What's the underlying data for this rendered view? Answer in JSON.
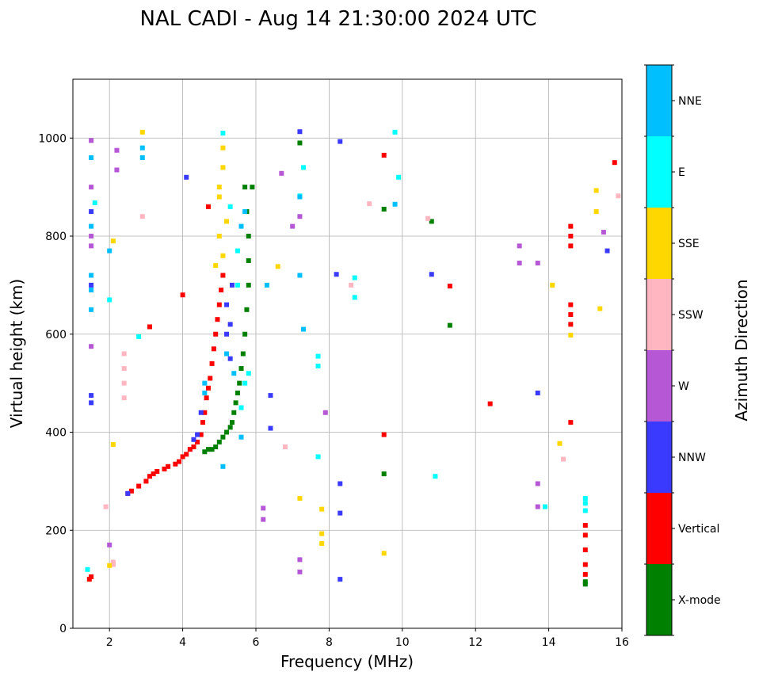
{
  "chart_data": {
    "type": "scatter",
    "title": "NAL CADI - Aug 14 21:30:00 2024 UTC",
    "xlabel": "Frequency (MHz)",
    "ylabel": "Virtual height (km)",
    "xlim": [
      1,
      16
    ],
    "ylim": [
      0,
      1120
    ],
    "xticks": [
      2,
      4,
      6,
      8,
      10,
      12,
      14,
      16
    ],
    "yticks": [
      0,
      200,
      400,
      600,
      800,
      1000
    ],
    "grid": true,
    "colorbar": {
      "label": "Azimuth Direction",
      "categories": [
        {
          "name": "X-mode",
          "color": "#008000"
        },
        {
          "name": "Vertical",
          "color": "#ff0000"
        },
        {
          "name": "NNW",
          "color": "#3a3aff"
        },
        {
          "name": "W",
          "color": "#b657d6"
        },
        {
          "name": "SSW",
          "color": "#ffb6c1"
        },
        {
          "name": "SSE",
          "color": "#ffd700"
        },
        {
          "name": "E",
          "color": "#00ffff"
        },
        {
          "name": "NNE",
          "color": "#00bfff"
        }
      ]
    },
    "traces": [
      {
        "category": "Vertical",
        "points": [
          [
            1.45,
            100
          ],
          [
            2.5,
            275
          ],
          [
            2.6,
            280
          ],
          [
            2.8,
            290
          ],
          [
            3.0,
            300
          ],
          [
            3.1,
            310
          ],
          [
            3.2,
            315
          ],
          [
            3.3,
            320
          ],
          [
            3.5,
            325
          ],
          [
            3.6,
            330
          ],
          [
            3.8,
            335
          ],
          [
            3.9,
            340
          ],
          [
            4.0,
            350
          ],
          [
            4.1,
            355
          ],
          [
            4.2,
            365
          ],
          [
            4.3,
            370
          ],
          [
            4.4,
            380
          ],
          [
            4.5,
            395
          ],
          [
            4.55,
            420
          ],
          [
            4.6,
            440
          ],
          [
            4.65,
            470
          ],
          [
            4.7,
            490
          ],
          [
            4.75,
            510
          ],
          [
            4.8,
            540
          ],
          [
            4.85,
            570
          ],
          [
            4.9,
            600
          ],
          [
            4.95,
            630
          ],
          [
            5.0,
            660
          ],
          [
            5.05,
            690
          ],
          [
            5.1,
            720
          ],
          [
            4.0,
            680
          ],
          [
            4.7,
            860
          ],
          [
            3.1,
            615
          ],
          [
            12.4,
            458
          ],
          [
            11.3,
            698
          ],
          [
            9.5,
            395
          ],
          [
            9.5,
            965
          ],
          [
            14.6,
            420
          ],
          [
            14.6,
            620
          ],
          [
            14.6,
            640
          ],
          [
            14.6,
            660
          ],
          [
            14.6,
            780
          ],
          [
            14.6,
            800
          ],
          [
            14.6,
            820
          ],
          [
            15.0,
            110
          ],
          [
            15.0,
            130
          ],
          [
            15.0,
            160
          ],
          [
            15.0,
            190
          ],
          [
            15.0,
            210
          ],
          [
            15.8,
            950
          ],
          [
            1.5,
            105
          ]
        ]
      },
      {
        "category": "X-mode",
        "points": [
          [
            4.6,
            360
          ],
          [
            4.7,
            365
          ],
          [
            4.8,
            365
          ],
          [
            4.9,
            370
          ],
          [
            5.0,
            380
          ],
          [
            5.1,
            390
          ],
          [
            5.2,
            400
          ],
          [
            5.3,
            410
          ],
          [
            5.35,
            420
          ],
          [
            5.4,
            440
          ],
          [
            5.45,
            460
          ],
          [
            5.5,
            480
          ],
          [
            5.55,
            500
          ],
          [
            5.6,
            530
          ],
          [
            5.65,
            560
          ],
          [
            5.7,
            600
          ],
          [
            5.75,
            650
          ],
          [
            5.8,
            700
          ],
          [
            5.8,
            750
          ],
          [
            5.8,
            800
          ],
          [
            5.75,
            850
          ],
          [
            5.7,
            900
          ],
          [
            15.0,
            90
          ],
          [
            15.0,
            95
          ],
          [
            11.3,
            618
          ],
          [
            9.5,
            315
          ],
          [
            9.5,
            855
          ],
          [
            7.2,
            990
          ],
          [
            10.8,
            830
          ],
          [
            5.9,
            900
          ]
        ]
      },
      {
        "category": "NNW",
        "points": [
          [
            4.3,
            385
          ],
          [
            4.4,
            395
          ],
          [
            5.3,
            550
          ],
          [
            5.2,
            600
          ],
          [
            5.3,
            620
          ],
          [
            5.2,
            660
          ],
          [
            5.35,
            700
          ],
          [
            4.5,
            440
          ],
          [
            6.4,
            408
          ],
          [
            6.4,
            475
          ],
          [
            8.3,
            235
          ],
          [
            8.3,
            295
          ],
          [
            8.3,
            100
          ],
          [
            8.2,
            722
          ],
          [
            10.8,
            722
          ],
          [
            13.7,
            480
          ],
          [
            15.6,
            770
          ],
          [
            1.5,
            460
          ],
          [
            1.5,
            475
          ],
          [
            1.5,
            700
          ],
          [
            1.5,
            850
          ],
          [
            8.3,
            993
          ],
          [
            4.1,
            920
          ],
          [
            7.2,
            1013
          ],
          [
            2.5,
            275
          ]
        ]
      },
      {
        "category": "W",
        "points": [
          [
            1.5,
            800
          ],
          [
            1.5,
            780
          ],
          [
            1.5,
            900
          ],
          [
            1.5,
            995
          ],
          [
            2.2,
            935
          ],
          [
            2.2,
            975
          ],
          [
            6.7,
            928
          ],
          [
            7.2,
            840
          ],
          [
            7.0,
            820
          ],
          [
            13.2,
            780
          ],
          [
            13.2,
            745
          ],
          [
            13.7,
            745
          ],
          [
            13.7,
            295
          ],
          [
            13.7,
            248
          ],
          [
            15.5,
            808
          ],
          [
            7.2,
            115
          ],
          [
            7.2,
            140
          ],
          [
            7.9,
            440
          ],
          [
            6.2,
            245
          ],
          [
            6.2,
            222
          ],
          [
            1.5,
            575
          ],
          [
            2.0,
            170
          ]
        ]
      },
      {
        "category": "SSW",
        "points": [
          [
            2.4,
            470
          ],
          [
            2.4,
            500
          ],
          [
            2.4,
            530
          ],
          [
            2.4,
            560
          ],
          [
            2.1,
            130
          ],
          [
            2.1,
            135
          ],
          [
            8.6,
            700
          ],
          [
            9.1,
            866
          ],
          [
            10.7,
            836
          ],
          [
            14.4,
            345
          ],
          [
            15.9,
            882
          ],
          [
            2.9,
            840
          ],
          [
            1.9,
            248
          ],
          [
            6.8,
            370
          ]
        ]
      },
      {
        "category": "SSE",
        "points": [
          [
            5.0,
            900
          ],
          [
            5.0,
            880
          ],
          [
            5.1,
            940
          ],
          [
            5.1,
            980
          ],
          [
            5.2,
            830
          ],
          [
            5.1,
            760
          ],
          [
            5.0,
            800
          ],
          [
            4.9,
            740
          ],
          [
            14.1,
            700
          ],
          [
            14.3,
            377
          ],
          [
            15.3,
            893
          ],
          [
            15.3,
            850
          ],
          [
            15.4,
            652
          ],
          [
            14.6,
            598
          ],
          [
            9.5,
            153
          ],
          [
            7.8,
            173
          ],
          [
            7.8,
            193
          ],
          [
            7.8,
            243
          ],
          [
            7.2,
            265
          ],
          [
            6.6,
            738
          ],
          [
            2.1,
            375
          ],
          [
            2.1,
            790
          ],
          [
            2.9,
            1012
          ],
          [
            2.0,
            128
          ]
        ]
      },
      {
        "category": "E",
        "points": [
          [
            5.6,
            450
          ],
          [
            5.7,
            500
          ],
          [
            5.8,
            520
          ],
          [
            5.1,
            1010
          ],
          [
            5.3,
            860
          ],
          [
            5.5,
            770
          ],
          [
            5.5,
            700
          ],
          [
            7.7,
            350
          ],
          [
            7.7,
            535
          ],
          [
            7.7,
            555
          ],
          [
            8.7,
            675
          ],
          [
            8.7,
            715
          ],
          [
            10.9,
            310
          ],
          [
            13.9,
            248
          ],
          [
            15.0,
            240
          ],
          [
            15.0,
            255
          ],
          [
            15.0,
            265
          ],
          [
            7.2,
            882
          ],
          [
            7.3,
            940
          ],
          [
            9.8,
            1012
          ],
          [
            9.9,
            920
          ],
          [
            2.0,
            670
          ],
          [
            1.6,
            868
          ],
          [
            1.4,
            120
          ],
          [
            2.8,
            595
          ]
        ]
      },
      {
        "category": "NNE",
        "points": [
          [
            4.6,
            480
          ],
          [
            4.6,
            500
          ],
          [
            5.1,
            330
          ],
          [
            5.4,
            520
          ],
          [
            5.2,
            560
          ],
          [
            5.6,
            820
          ],
          [
            5.7,
            850
          ],
          [
            5.6,
            390
          ],
          [
            1.5,
            650
          ],
          [
            1.5,
            690
          ],
          [
            1.5,
            720
          ],
          [
            1.5,
            960
          ],
          [
            1.5,
            820
          ],
          [
            7.2,
            880
          ],
          [
            7.2,
            720
          ],
          [
            7.3,
            610
          ],
          [
            6.3,
            700
          ],
          [
            2.9,
            960
          ],
          [
            2.9,
            980
          ],
          [
            9.8,
            865
          ],
          [
            2.0,
            770
          ]
        ]
      }
    ]
  }
}
